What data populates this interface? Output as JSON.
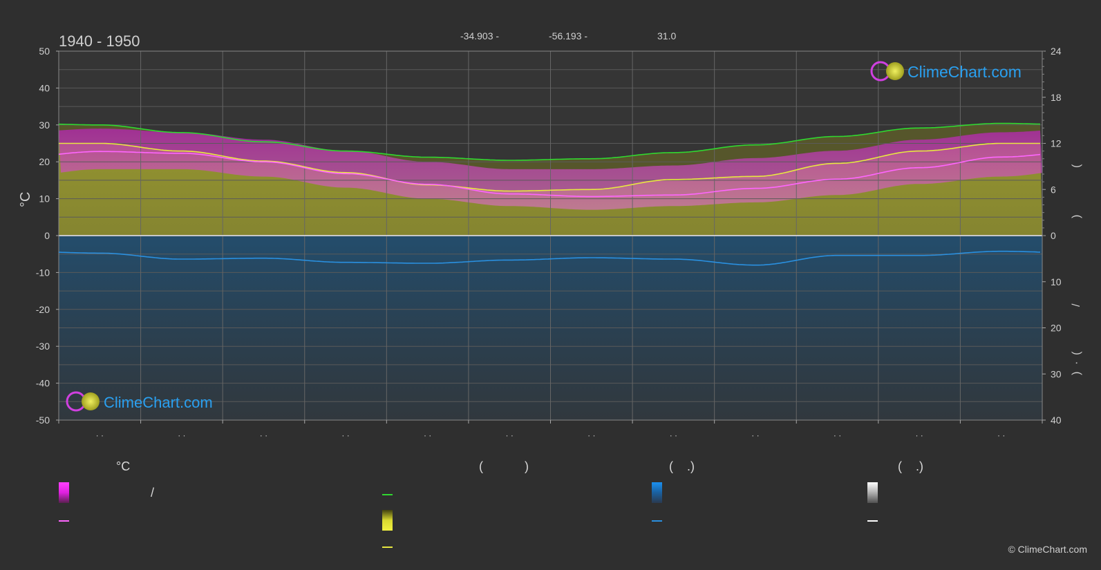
{
  "header": {
    "period": "1940 - 1950",
    "lat": "-34.903 -",
    "lon": "-56.193 -",
    "elev": "31.0"
  },
  "chart_data": {
    "type": "area",
    "left_axis": {
      "label": "°C",
      "ticks": [
        50,
        40,
        30,
        20,
        10,
        0,
        -10,
        -20,
        -30,
        -40,
        -50
      ],
      "range": [
        -50,
        50
      ]
    },
    "right_axis_top": {
      "ticks": [
        24,
        18,
        12,
        6,
        0
      ],
      "range": [
        0,
        24
      ]
    },
    "right_axis_bottom": {
      "ticks": [
        0,
        10,
        20,
        30,
        40
      ],
      "range": [
        0,
        40
      ]
    },
    "right_axis_glyphs": [
      "(",
      ")",
      "/",
      "(",
      "·",
      ")"
    ],
    "x_tick_labels": [
      "· ·",
      "· ·",
      "· ·",
      "· ·",
      "· ·",
      "· ·",
      "· ·",
      "· ·",
      "· ·",
      "· ·",
      "· ·",
      "· ·"
    ],
    "months": [
      1,
      2,
      3,
      4,
      5,
      6,
      7,
      8,
      9,
      10,
      11,
      12
    ],
    "series": [
      {
        "key": "daylight",
        "color": "#30d830",
        "axis": "hours",
        "values": [
          14.4,
          13.4,
          12.2,
          11.0,
          10.2,
          9.8,
          10.0,
          10.8,
          11.8,
          12.9,
          14.0,
          14.6
        ]
      },
      {
        "key": "sunshine",
        "color": "#e8e840",
        "axis": "hours",
        "values": [
          12.0,
          11.0,
          9.7,
          8.2,
          6.6,
          5.8,
          6.0,
          7.3,
          7.7,
          9.4,
          11.0,
          12.0
        ]
      },
      {
        "key": "mean_temp",
        "color": "#ff66ff",
        "axis": "temp",
        "values": [
          22.8,
          22.3,
          20.0,
          16.8,
          13.9,
          11.3,
          10.6,
          11.0,
          12.8,
          15.3,
          18.4,
          21.3
        ]
      },
      {
        "key": "precip",
        "color": "#2a90e0",
        "axis": "precip",
        "values": [
          3.8,
          5.1,
          4.9,
          5.8,
          6.0,
          5.3,
          4.8,
          5.1,
          6.4,
          4.3,
          4.3,
          3.4
        ]
      }
    ],
    "bands": {
      "temp_max_band": {
        "color": "#d040c8",
        "values": [
          29,
          28,
          26,
          23,
          20,
          18,
          18,
          19,
          21,
          23,
          26,
          28
        ]
      },
      "temp_min_band": {
        "color": "#e080e0",
        "values": [
          18,
          18,
          16,
          13,
          10,
          8,
          7,
          8,
          9,
          11,
          14,
          16
        ]
      }
    },
    "grid": true
  },
  "logo": {
    "text": "ClimeChart.com"
  },
  "legend": {
    "col1_head": "°C",
    "col1_slash": "/",
    "col2_head": "(            )",
    "col3_head": "(    .)",
    "col4_head": "(    .)",
    "colors": {
      "temp_band": "#e020e0",
      "temp_line": "#ff66ff",
      "daylight": "#30d830",
      "sunshine_band": "#d8d830",
      "sunshine_line": "#e8e840",
      "precip_band": "#1a80e0",
      "precip_line": "#2a90e0",
      "snow_band": "#e0e0e0",
      "snow_line": "#ffffff"
    }
  },
  "copyright": "© ClimeChart.com"
}
